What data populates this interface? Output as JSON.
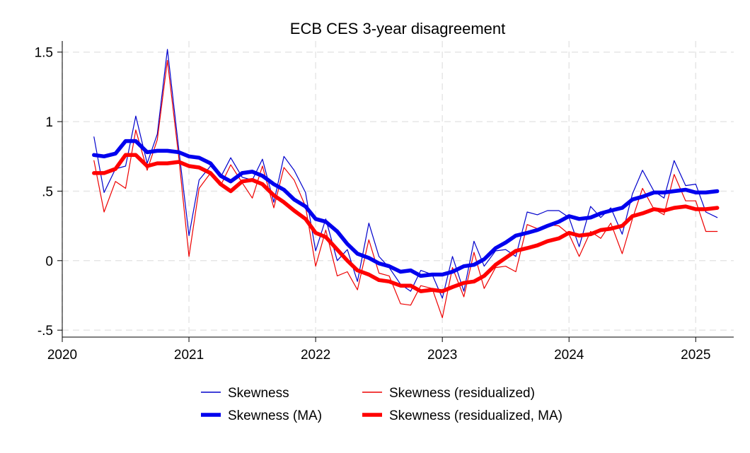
{
  "chart_data": {
    "type": "line",
    "title": "ECB CES 3-year disagreement",
    "xlabel": "",
    "ylabel": "",
    "xlim": [
      2020.0,
      2025.3
    ],
    "ylim": [
      -0.55,
      1.58
    ],
    "x_ticks": [
      2020,
      2021,
      2022,
      2023,
      2024,
      2025
    ],
    "y_ticks": [
      -0.5,
      0,
      0.5,
      1,
      1.5
    ],
    "y_tick_labels": [
      "-.5",
      "0",
      ".5",
      "1",
      "1.5"
    ],
    "grid": true,
    "legend": "bottom",
    "series": [
      {
        "name": "Skewness",
        "color": "#0000cc",
        "style": "thin",
        "x": [
          2020.25,
          2020.33,
          2020.42,
          2020.5,
          2020.58,
          2020.67,
          2020.75,
          2020.83,
          2020.92,
          2021.0,
          2021.08,
          2021.17,
          2021.25,
          2021.33,
          2021.42,
          2021.5,
          2021.58,
          2021.67,
          2021.75,
          2021.83,
          2021.92,
          2022.0,
          2022.08,
          2022.17,
          2022.25,
          2022.33,
          2022.42,
          2022.5,
          2022.58,
          2022.67,
          2022.75,
          2022.83,
          2022.92,
          2023.0,
          2023.08,
          2023.17,
          2023.25,
          2023.33,
          2023.42,
          2023.5,
          2023.58,
          2023.67,
          2023.75,
          2023.83,
          2023.92,
          2024.0,
          2024.08,
          2024.17,
          2024.25,
          2024.33,
          2024.42,
          2024.5,
          2024.58,
          2024.67,
          2024.75,
          2024.83,
          2024.92,
          2025.0,
          2025.08,
          2025.17
        ],
        "y": [
          0.89,
          0.49,
          0.66,
          0.68,
          1.04,
          0.7,
          0.91,
          1.52,
          0.8,
          0.18,
          0.58,
          0.68,
          0.6,
          0.74,
          0.6,
          0.58,
          0.73,
          0.42,
          0.75,
          0.65,
          0.49,
          0.07,
          0.3,
          0.0,
          0.08,
          -0.15,
          0.27,
          0.03,
          -0.05,
          -0.17,
          -0.22,
          -0.07,
          -0.1,
          -0.27,
          0.03,
          -0.22,
          0.14,
          -0.04,
          0.07,
          0.08,
          0.03,
          0.35,
          0.33,
          0.36,
          0.36,
          0.31,
          0.1,
          0.39,
          0.31,
          0.38,
          0.19,
          0.48,
          0.65,
          0.5,
          0.45,
          0.72,
          0.54,
          0.55,
          0.35,
          0.31
        ]
      },
      {
        "name": "Skewness (MA)",
        "color": "#0000ee",
        "style": "thick",
        "x": [
          2020.25,
          2020.33,
          2020.42,
          2020.5,
          2020.58,
          2020.67,
          2020.75,
          2020.83,
          2020.92,
          2021.0,
          2021.08,
          2021.17,
          2021.25,
          2021.33,
          2021.42,
          2021.5,
          2021.58,
          2021.67,
          2021.75,
          2021.83,
          2021.92,
          2022.0,
          2022.08,
          2022.17,
          2022.25,
          2022.33,
          2022.42,
          2022.5,
          2022.58,
          2022.67,
          2022.75,
          2022.83,
          2022.92,
          2023.0,
          2023.08,
          2023.17,
          2023.25,
          2023.33,
          2023.42,
          2023.5,
          2023.58,
          2023.67,
          2023.75,
          2023.83,
          2023.92,
          2024.0,
          2024.08,
          2024.17,
          2024.25,
          2024.33,
          2024.42,
          2024.5,
          2024.58,
          2024.67,
          2024.75,
          2024.83,
          2024.92,
          2025.0,
          2025.08,
          2025.17
        ],
        "y": [
          0.76,
          0.75,
          0.77,
          0.86,
          0.86,
          0.78,
          0.79,
          0.79,
          0.78,
          0.75,
          0.74,
          0.7,
          0.61,
          0.57,
          0.63,
          0.64,
          0.61,
          0.55,
          0.51,
          0.44,
          0.39,
          0.3,
          0.28,
          0.21,
          0.12,
          0.05,
          0.02,
          -0.02,
          -0.04,
          -0.08,
          -0.07,
          -0.11,
          -0.1,
          -0.1,
          -0.08,
          -0.04,
          -0.03,
          0.01,
          0.09,
          0.13,
          0.18,
          0.2,
          0.22,
          0.25,
          0.28,
          0.32,
          0.3,
          0.31,
          0.34,
          0.36,
          0.38,
          0.44,
          0.46,
          0.49,
          0.49,
          0.5,
          0.51,
          0.49,
          0.49,
          0.5
        ]
      },
      {
        "name": "Skewness (residualized)",
        "color": "#ee0000",
        "style": "thin",
        "x": [
          2020.25,
          2020.33,
          2020.42,
          2020.5,
          2020.58,
          2020.67,
          2020.75,
          2020.83,
          2020.92,
          2021.0,
          2021.08,
          2021.17,
          2021.25,
          2021.33,
          2021.42,
          2021.5,
          2021.58,
          2021.67,
          2021.75,
          2021.83,
          2021.92,
          2022.0,
          2022.08,
          2022.17,
          2022.25,
          2022.33,
          2022.42,
          2022.5,
          2022.58,
          2022.67,
          2022.75,
          2022.83,
          2022.92,
          2023.0,
          2023.08,
          2023.17,
          2023.25,
          2023.33,
          2023.42,
          2023.5,
          2023.58,
          2023.67,
          2023.75,
          2023.83,
          2023.92,
          2024.0,
          2024.08,
          2024.17,
          2024.25,
          2024.33,
          2024.42,
          2024.5,
          2024.58,
          2024.67,
          2024.75,
          2024.83,
          2024.92,
          2025.0,
          2025.08,
          2025.17
        ],
        "y": [
          0.72,
          0.35,
          0.57,
          0.52,
          0.94,
          0.65,
          0.87,
          1.44,
          0.74,
          0.03,
          0.52,
          0.63,
          0.54,
          0.69,
          0.56,
          0.45,
          0.68,
          0.38,
          0.67,
          0.58,
          0.39,
          -0.04,
          0.22,
          -0.11,
          -0.08,
          -0.21,
          0.15,
          -0.09,
          -0.11,
          -0.31,
          -0.32,
          -0.18,
          -0.2,
          -0.41,
          -0.05,
          -0.26,
          0.06,
          -0.2,
          -0.05,
          -0.04,
          -0.08,
          0.26,
          0.23,
          0.26,
          0.25,
          0.19,
          0.03,
          0.21,
          0.16,
          0.27,
          0.05,
          0.3,
          0.52,
          0.37,
          0.33,
          0.62,
          0.43,
          0.43,
          0.21,
          0.21
        ]
      },
      {
        "name": "Skewness (residualized, MA)",
        "color": "#ff0000",
        "style": "thick",
        "x": [
          2020.25,
          2020.33,
          2020.42,
          2020.5,
          2020.58,
          2020.67,
          2020.75,
          2020.83,
          2020.92,
          2021.0,
          2021.08,
          2021.17,
          2021.25,
          2021.33,
          2021.42,
          2021.5,
          2021.58,
          2021.67,
          2021.75,
          2021.83,
          2021.92,
          2022.0,
          2022.08,
          2022.17,
          2022.25,
          2022.33,
          2022.42,
          2022.5,
          2022.58,
          2022.67,
          2022.75,
          2022.83,
          2022.92,
          2023.0,
          2023.08,
          2023.17,
          2023.25,
          2023.33,
          2023.42,
          2023.5,
          2023.58,
          2023.67,
          2023.75,
          2023.83,
          2023.92,
          2024.0,
          2024.08,
          2024.17,
          2024.25,
          2024.33,
          2024.42,
          2024.5,
          2024.58,
          2024.67,
          2024.75,
          2024.83,
          2024.92,
          2025.0,
          2025.08,
          2025.17
        ],
        "y": [
          0.63,
          0.63,
          0.66,
          0.76,
          0.76,
          0.68,
          0.7,
          0.7,
          0.71,
          0.68,
          0.67,
          0.63,
          0.55,
          0.5,
          0.57,
          0.58,
          0.55,
          0.47,
          0.42,
          0.36,
          0.3,
          0.2,
          0.17,
          0.08,
          0.0,
          -0.07,
          -0.1,
          -0.14,
          -0.15,
          -0.18,
          -0.18,
          -0.22,
          -0.21,
          -0.22,
          -0.19,
          -0.16,
          -0.15,
          -0.11,
          -0.03,
          0.02,
          0.07,
          0.09,
          0.11,
          0.14,
          0.16,
          0.2,
          0.18,
          0.19,
          0.22,
          0.23,
          0.25,
          0.32,
          0.34,
          0.37,
          0.36,
          0.38,
          0.39,
          0.37,
          0.37,
          0.38
        ]
      }
    ]
  }
}
